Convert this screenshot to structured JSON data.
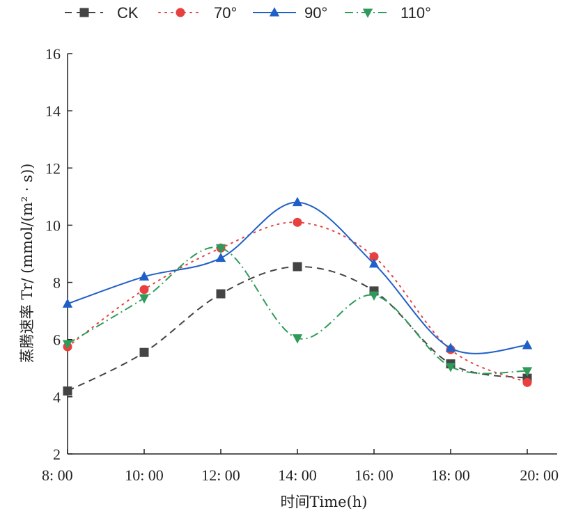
{
  "chart_data": {
    "type": "line",
    "xlabel": "时间Time(h)",
    "ylabel": "蒸腾速率 Tr/ (mmol/(m² · s))",
    "categories": [
      "8: 00",
      "10: 00",
      "12: 00",
      "14: 00",
      "16: 00",
      "18: 00",
      "20: 00"
    ],
    "ylim": [
      2,
      16
    ],
    "yticks": [
      2,
      4,
      6,
      8,
      10,
      12,
      14,
      16
    ],
    "grid": false,
    "legend_position": "top",
    "series": [
      {
        "name": "CK",
        "color": "#444444",
        "marker": "square",
        "line_style": "dashed",
        "values": [
          4.2,
          5.55,
          7.6,
          8.55,
          7.7,
          5.15,
          4.65
        ]
      },
      {
        "name": "70°",
        "color": "#e8403f",
        "marker": "circle",
        "line_style": "dotted",
        "values": [
          5.75,
          7.75,
          9.2,
          10.1,
          8.9,
          5.65,
          4.5
        ]
      },
      {
        "name": "90°",
        "color": "#1f5fc8",
        "marker": "triangle-up",
        "line_style": "solid",
        "values": [
          7.25,
          8.2,
          8.85,
          10.8,
          8.65,
          5.7,
          5.8
        ]
      },
      {
        "name": "110°",
        "color": "#2e9b5a",
        "marker": "triangle-down",
        "line_style": "dashdot",
        "values": [
          5.85,
          7.45,
          9.2,
          6.05,
          7.55,
          5.05,
          4.9
        ]
      }
    ]
  }
}
